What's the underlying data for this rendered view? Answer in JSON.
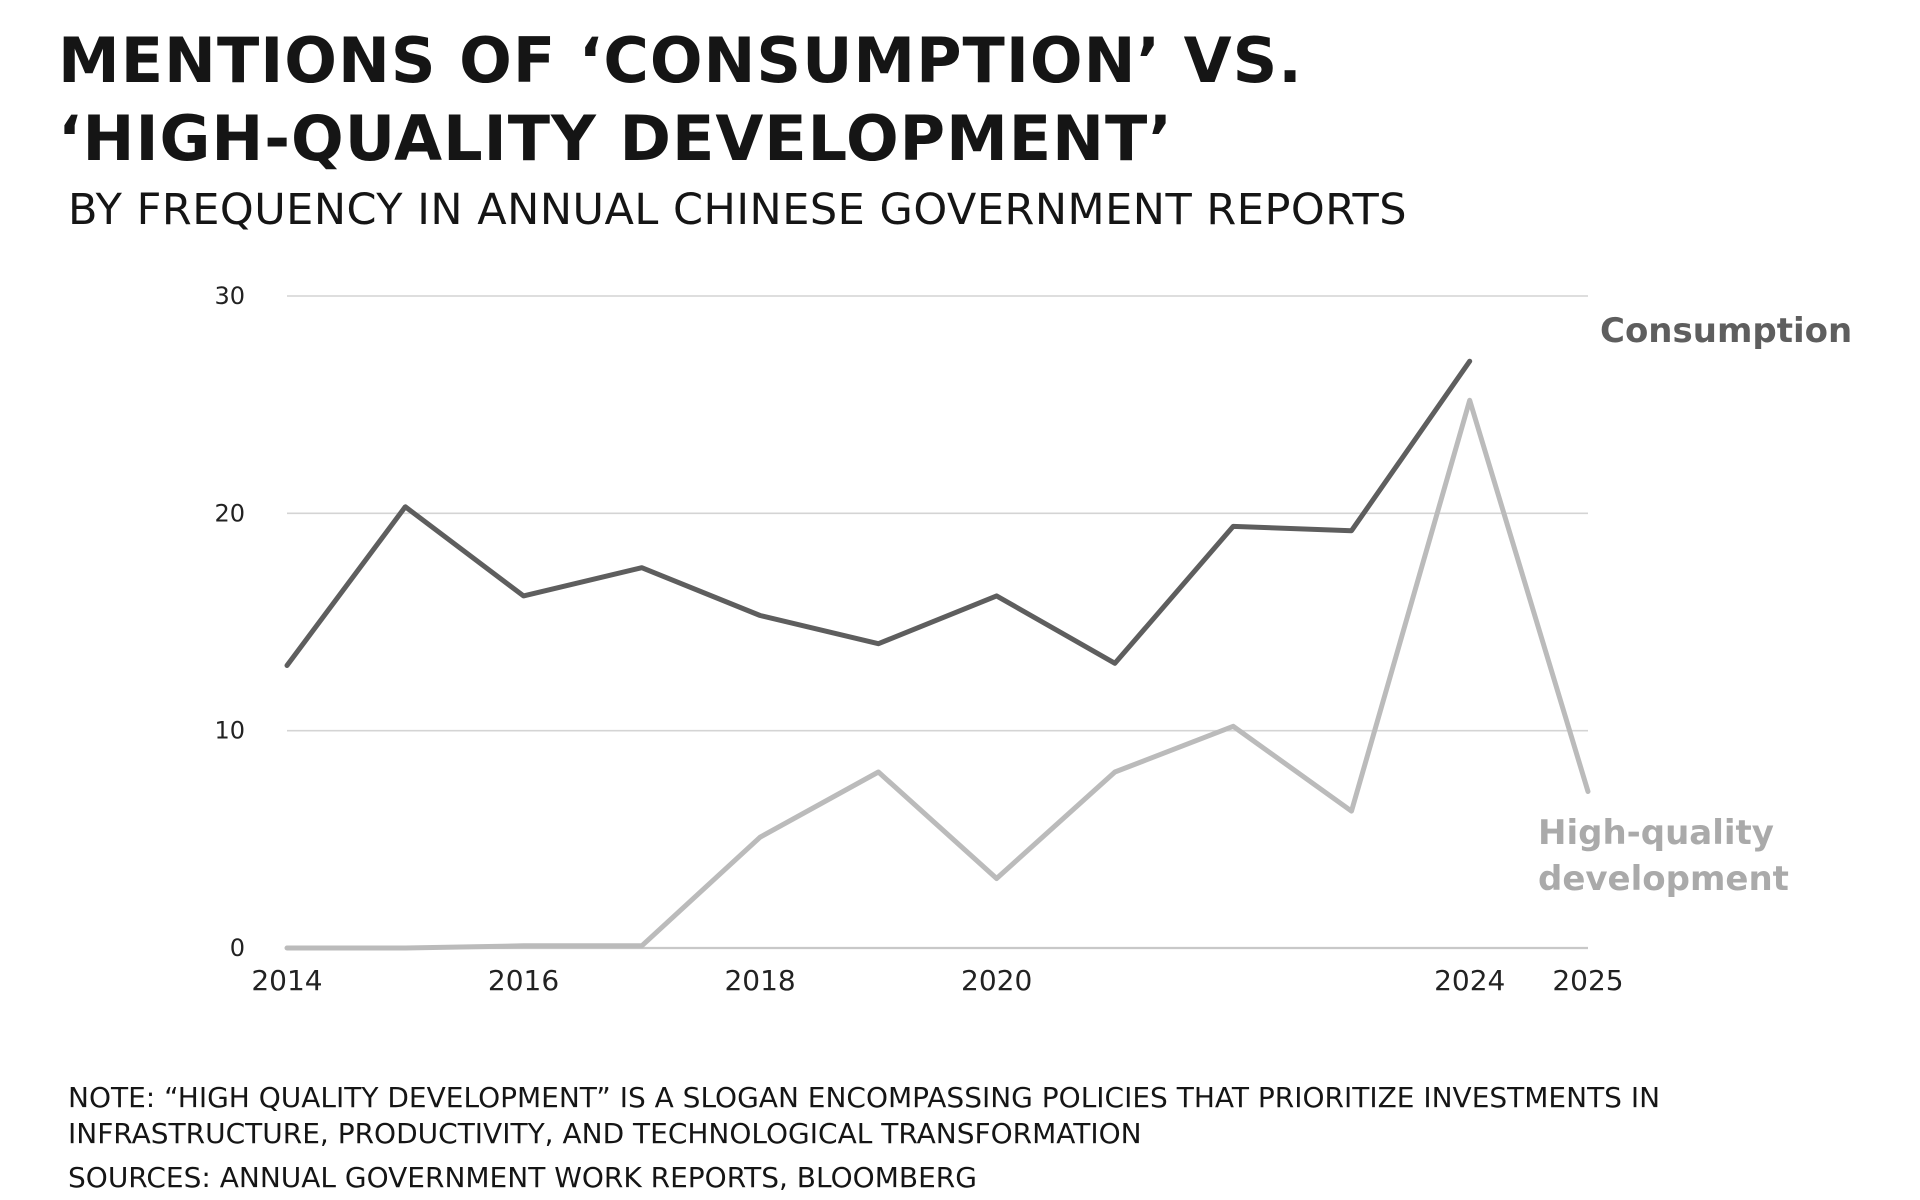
{
  "header": {
    "title": "MENTIONS OF ‘CONSUMPTION’ VS. ‘HIGH-QUALITY DEVELOPMENT’",
    "subtitle": "BY FREQUENCY IN ANNUAL CHINESE GOVERNMENT REPORTS"
  },
  "footer": {
    "note": "NOTE: “HIGH QUALITY DEVELOPMENT” IS A SLOGAN ENCOMPASSING POLICIES THAT PRIORITIZE INVESTMENTS IN INFRASTRUCTURE, PRODUCTIVITY, AND TECHNOLOGICAL TRANSFORMATION",
    "sources": "SOURCES: ANNUAL GOVERNMENT WORK REPORTS, BLOOMBERG"
  },
  "chart_data": {
    "type": "line",
    "title": "MENTIONS OF ‘CONSUMPTION’ VS. ‘HIGH-QUALITY DEVELOPMENT’",
    "subtitle": "BY FREQUENCY IN ANNUAL CHINESE GOVERNMENT REPORTS",
    "xlabel": "",
    "ylabel": "",
    "x": [
      2014,
      2015,
      2016,
      2017,
      2018,
      2019,
      2020,
      2021,
      2022,
      2023,
      2024,
      2025
    ],
    "xticks": [
      "2014",
      "2016",
      "2018",
      "2020",
      "2024",
      "2025"
    ],
    "xtick_index": [
      0,
      2,
      4,
      6,
      10,
      11
    ],
    "yticks": [
      0,
      10,
      20,
      30
    ],
    "ylim": [
      0,
      30
    ],
    "grid": true,
    "legend": "direct labels at right end of lines",
    "series": [
      {
        "name": "Consumption",
        "values": [
          13,
          20.3,
          16.2,
          17.5,
          15.3,
          14,
          16.2,
          13.1,
          19.4,
          19.2,
          27,
          null
        ],
        "color": "#5e5e5e"
      },
      {
        "name": "High-quality development",
        "values": [
          0,
          0,
          0.1,
          0.1,
          5.1,
          8.1,
          3.2,
          8.1,
          10.2,
          6.3,
          25.2,
          7.2
        ],
        "color": "#bbbbbb"
      }
    ],
    "colors": {
      "grid": "#d4d4d4",
      "axis_text": "#222222"
    }
  }
}
